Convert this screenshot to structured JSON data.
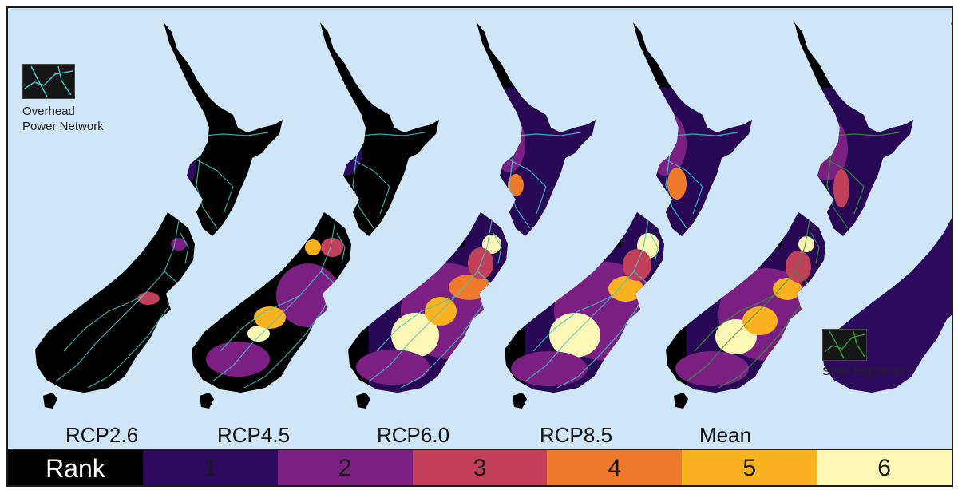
{
  "map": {
    "scenarios": [
      "RCP2.6",
      "RCP4.5",
      "RCP6.0",
      "RCP8.5",
      "Mean"
    ],
    "legend_power": {
      "line1": "Overhead",
      "line2": "Power Network",
      "icon": "power-network-swatch",
      "line_color": "#3cc8c8"
    },
    "legend_highways": {
      "label": "State Highways",
      "icon": "highway-swatch",
      "line_color": "#2e9a3a"
    },
    "colors": {
      "ocean": "#cfe6f8",
      "rank0": "#000000",
      "rank1": "#2e0a5e",
      "rank2": "#7b1f82",
      "rank3": "#c2405a",
      "rank4": "#f07a2c",
      "rank5": "#fbb21f",
      "rank6": "#fdf7b6"
    }
  },
  "rank_scale": {
    "title": "Rank",
    "items": [
      {
        "label": "1",
        "color": "#2e0a5e"
      },
      {
        "label": "2",
        "color": "#7b1f82"
      },
      {
        "label": "3",
        "color": "#c2405a"
      },
      {
        "label": "4",
        "color": "#f07a2c"
      },
      {
        "label": "5",
        "color": "#fbb21f"
      },
      {
        "label": "6",
        "color": "#fdf7b6"
      }
    ]
  }
}
